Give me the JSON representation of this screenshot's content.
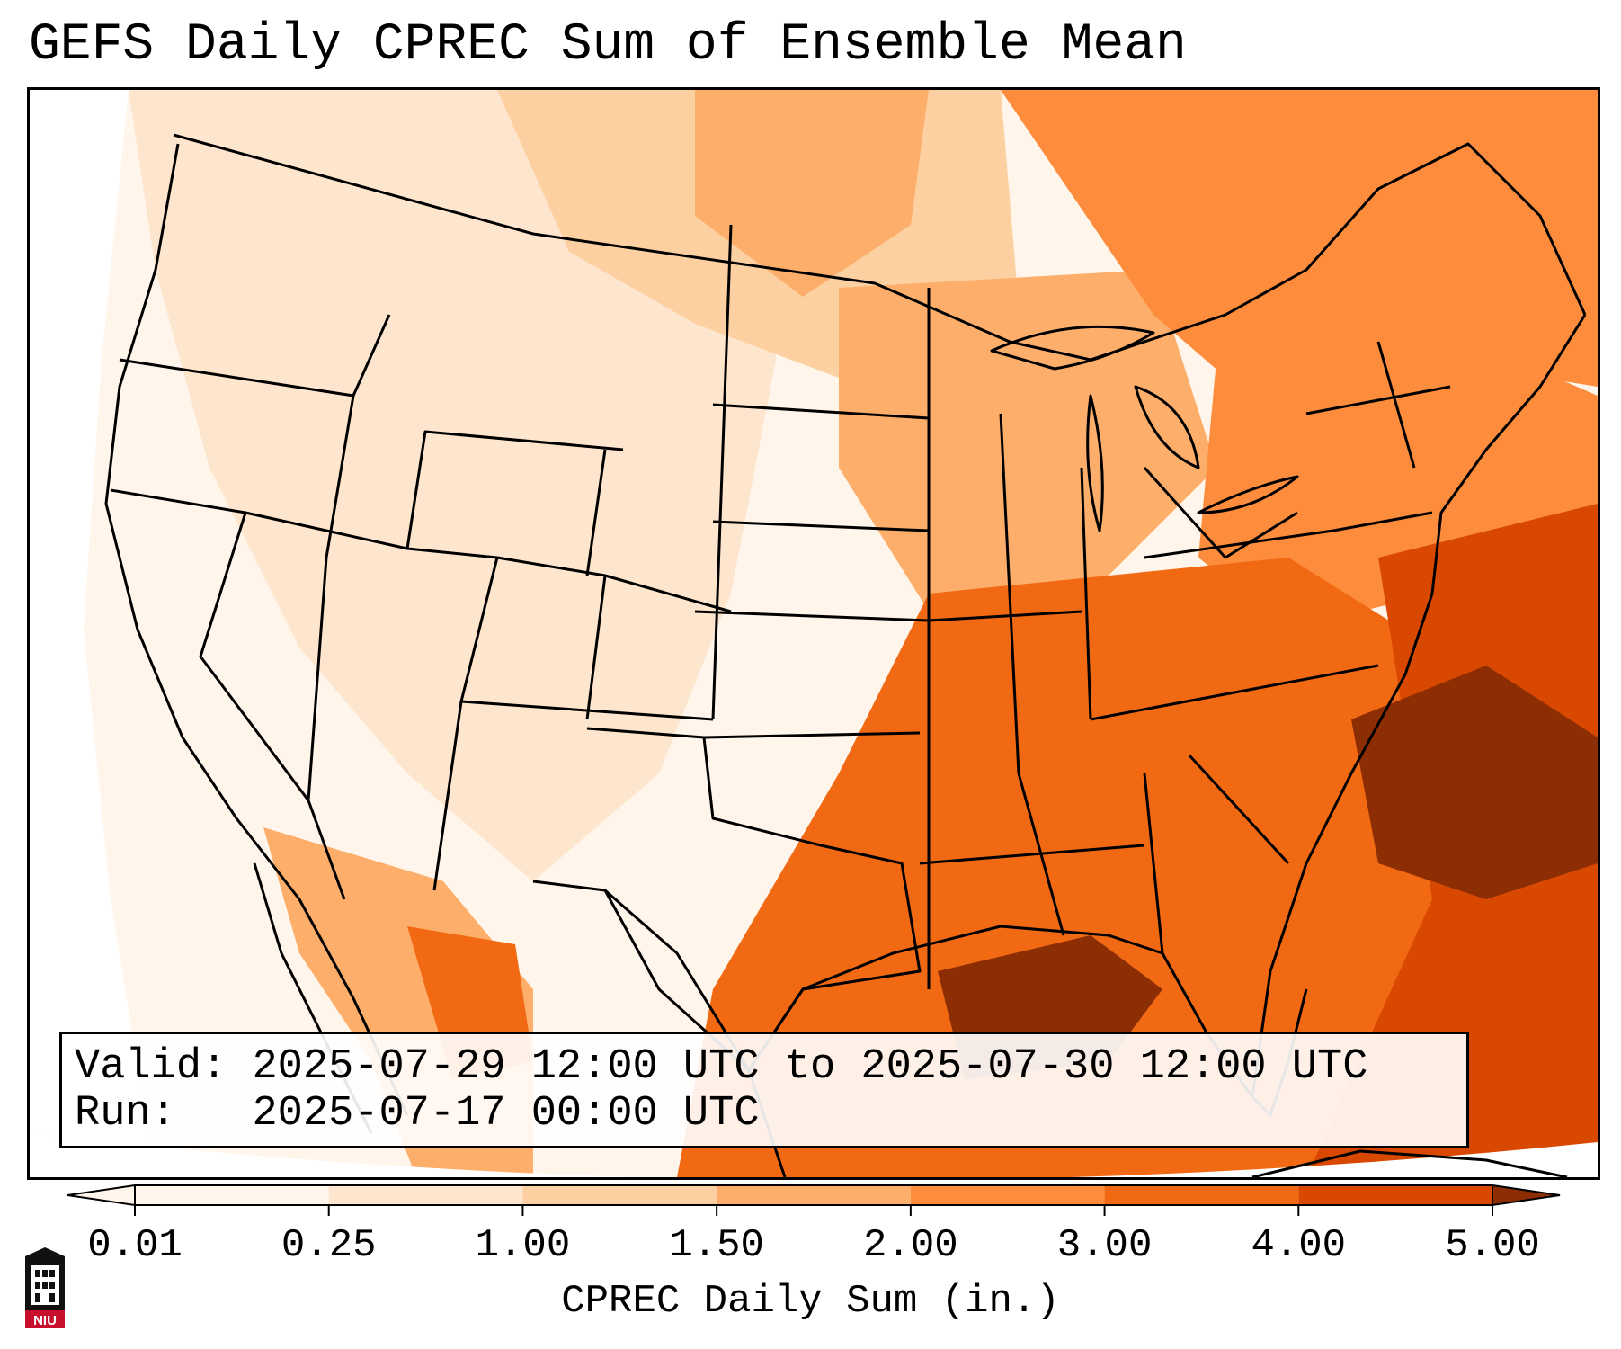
{
  "title": "GEFS Daily CPREC Sum of Ensemble Mean",
  "info": {
    "valid_label": "Valid:",
    "valid_value": "2025-07-29 12:00 UTC to 2025-07-30 12:00 UTC",
    "run_label": "Run:",
    "run_value": "2025-07-17 00:00 UTC"
  },
  "colorbar": {
    "title": "CPREC Daily Sum (in.)",
    "ticks": [
      "0.01",
      "0.25",
      "1.00",
      "1.50",
      "2.00",
      "3.00",
      "4.00",
      "5.00"
    ],
    "colors": [
      "#fff5eb",
      "#fee6ce",
      "#fdd0a2",
      "#fdae6b",
      "#fd8d3c",
      "#f16913",
      "#d94801",
      "#8c2d04"
    ],
    "extend": "both"
  },
  "map": {
    "region": "CONUS",
    "field_colors": {
      "blank": "#ffffff",
      "level1": "#fff5eb",
      "level2": "#fee6ce",
      "level3": "#fdd0a2",
      "level4": "#fdae6b",
      "level5": "#fd8d3c",
      "level6": "#f16913",
      "level7": "#d94801",
      "level8": "#8c2d04"
    }
  },
  "logo": {
    "text": "NIU",
    "color": "#c8102e"
  }
}
